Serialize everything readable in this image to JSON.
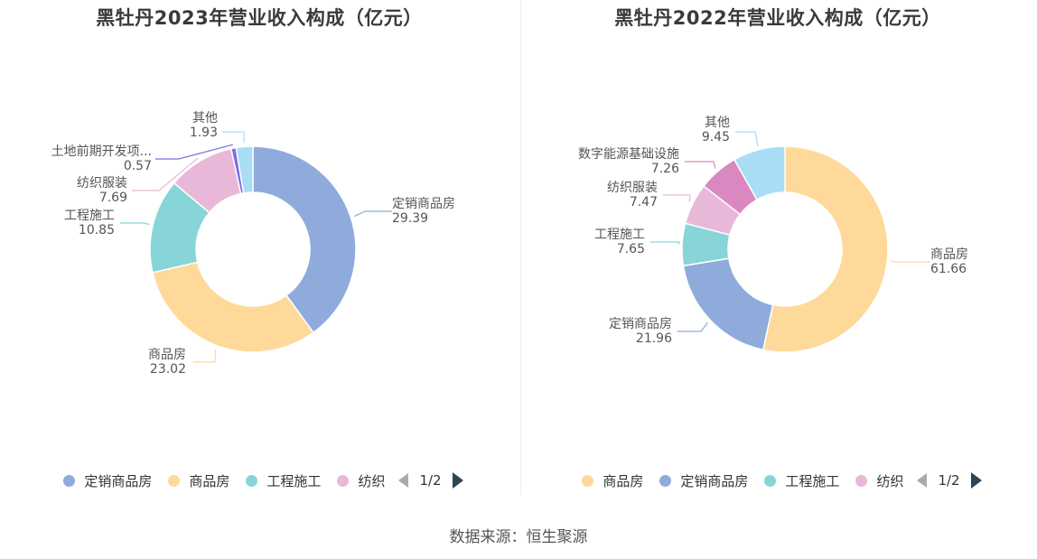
{
  "chart_data": [
    {
      "type": "pie",
      "title": "黑牡丹2023年营业收入构成（亿元）",
      "donut": true,
      "slices": [
        {
          "name": "定销商品房",
          "label": "定销商品房",
          "value": 29.39,
          "color": "#8eabdb"
        },
        {
          "name": "商品房",
          "label": "商品房",
          "value": 23.02,
          "color": "#ffd99a"
        },
        {
          "name": "工程施工",
          "label": "工程施工",
          "value": 10.85,
          "color": "#88d5d9"
        },
        {
          "name": "纺织服装",
          "label": "纺织服装",
          "value": 7.69,
          "color": "#e9b8d9"
        },
        {
          "name": "土地前期开发项目",
          "label": "土地前期开发项...",
          "value": 0.57,
          "color": "#7b6fe0"
        },
        {
          "name": "其他",
          "label": "其他",
          "value": 1.93,
          "color": "#a9ddf5"
        }
      ],
      "legend": {
        "position": "bottom",
        "items": [
          {
            "label": "定销商品房",
            "color": "#8eabdb"
          },
          {
            "label": "商品房",
            "color": "#ffd99a"
          },
          {
            "label": "工程施工",
            "color": "#88d5d9"
          },
          {
            "label": "纺织",
            "color": "#e9b8d9"
          }
        ],
        "page": "1/2"
      }
    },
    {
      "type": "pie",
      "title": "黑牡丹2022年营业收入构成（亿元）",
      "donut": true,
      "slices": [
        {
          "name": "商品房",
          "label": "商品房",
          "value": 61.66,
          "color": "#ffd99a"
        },
        {
          "name": "定销商品房",
          "label": "定销商品房",
          "value": 21.96,
          "color": "#8eabdb"
        },
        {
          "name": "工程施工",
          "label": "工程施工",
          "value": 7.65,
          "color": "#88d5d9"
        },
        {
          "name": "纺织服装",
          "label": "纺织服装",
          "value": 7.47,
          "color": "#e9b8d9"
        },
        {
          "name": "数字能源基础设施",
          "label": "数字能源基础设施",
          "value": 7.26,
          "color": "#db88c0"
        },
        {
          "name": "其他",
          "label": "其他",
          "value": 9.45,
          "color": "#a9ddf5"
        }
      ],
      "legend": {
        "position": "bottom",
        "items": [
          {
            "label": "商品房",
            "color": "#ffd99a"
          },
          {
            "label": "定销商品房",
            "color": "#8eabdb"
          },
          {
            "label": "工程施工",
            "color": "#88d5d9"
          },
          {
            "label": "纺织",
            "color": "#e9b8d9"
          }
        ],
        "page": "1/2"
      }
    }
  ],
  "footer": {
    "source": "数据来源：恒生聚源"
  }
}
